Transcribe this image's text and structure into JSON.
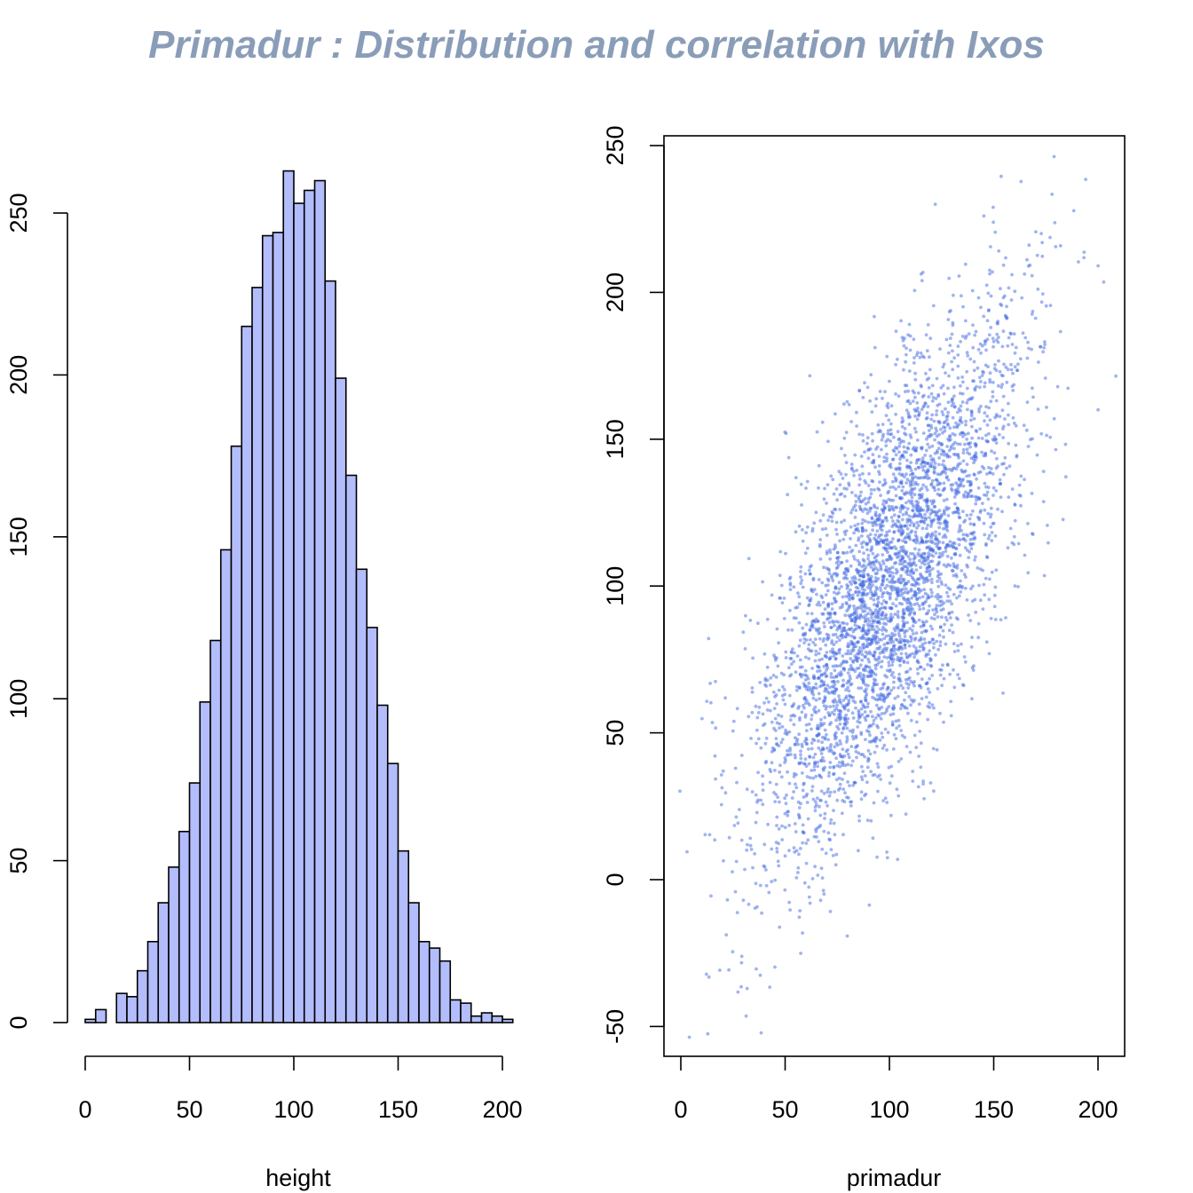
{
  "title": "Primadur : Distribution and correlation with Ixos",
  "colors": {
    "title": "#8a9db8",
    "histogram_fill": "#b3bdfb",
    "scatter_points": "#4169e1"
  },
  "chart_data": [
    {
      "type": "bar",
      "subtype": "histogram",
      "title": "",
      "xlabel": "height",
      "ylabel": "",
      "xlim": [
        0,
        205
      ],
      "ylim": [
        0,
        260
      ],
      "x_ticks": [
        0,
        50,
        100,
        150,
        200
      ],
      "y_ticks": [
        0,
        50,
        100,
        150,
        200,
        250
      ],
      "bin_width": 5,
      "bin_starts": [
        0,
        5,
        10,
        15,
        20,
        25,
        30,
        35,
        40,
        45,
        50,
        55,
        60,
        65,
        70,
        75,
        80,
        85,
        90,
        95,
        100,
        105,
        110,
        115,
        120,
        125,
        130,
        135,
        140,
        145,
        150,
        155,
        160,
        165,
        170,
        175,
        180,
        185,
        190,
        195,
        200
      ],
      "values": [
        1,
        4,
        0,
        9,
        8,
        16,
        25,
        37,
        48,
        59,
        74,
        99,
        118,
        146,
        178,
        215,
        227,
        243,
        244,
        263,
        253,
        257,
        260,
        229,
        199,
        169,
        140,
        122,
        98,
        80,
        53,
        37,
        25,
        23,
        19,
        7,
        6,
        2,
        3,
        2,
        1
      ]
    },
    {
      "type": "scatter",
      "title": "",
      "xlabel": "primadur",
      "ylabel": "",
      "xlim": [
        -4,
        212
      ],
      "ylim": [
        -60,
        253
      ],
      "x_ticks": [
        0,
        50,
        100,
        150,
        200
      ],
      "y_ticks": [
        -50,
        0,
        50,
        100,
        150,
        200,
        250
      ],
      "n_points": 4000,
      "x_mean": 100,
      "x_sd": 32,
      "y_mean": 100,
      "y_sd": 46,
      "correlation": 0.72
    }
  ]
}
